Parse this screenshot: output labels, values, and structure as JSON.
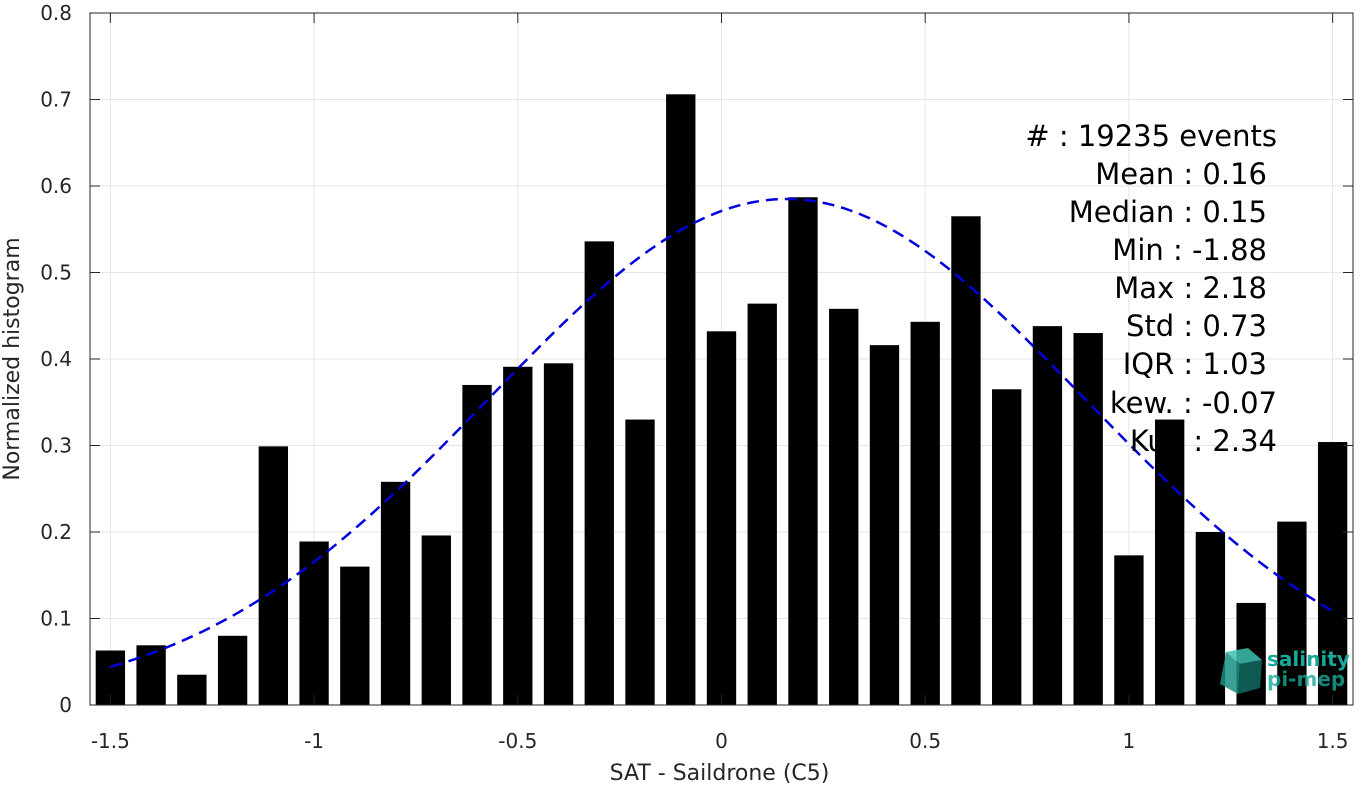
{
  "chart_data": {
    "type": "bar",
    "title": "",
    "xlabel": "SAT - Saildrone (C5)",
    "ylabel": "Normalized histogram",
    "xlim": [
      -1.55,
      1.55
    ],
    "ylim": [
      0,
      0.8
    ],
    "xticks": [
      -1.5,
      -1,
      -0.5,
      0,
      0.5,
      1,
      1.5
    ],
    "xtick_labels": [
      "-1.5",
      "-1",
      "-0.5",
      "0",
      "0.5",
      "1",
      "1.5"
    ],
    "yticks": [
      0,
      0.1,
      0.2,
      0.3,
      0.4,
      0.5,
      0.6,
      0.7,
      0.8
    ],
    "ytick_labels": [
      "0",
      "0.1",
      "0.2",
      "0.3",
      "0.4",
      "0.5",
      "0.6",
      "0.7",
      "0.8"
    ],
    "grid": true,
    "bar_color": "#000000",
    "bars": {
      "x": [
        -1.5,
        -1.4,
        -1.3,
        -1.2,
        -1.1,
        -1.0,
        -0.9,
        -0.8,
        -0.7,
        -0.6,
        -0.5,
        -0.4,
        -0.3,
        -0.2,
        -0.1,
        0.0,
        0.1,
        0.2,
        0.3,
        0.4,
        0.5,
        0.6,
        0.7,
        0.8,
        0.9,
        1.0,
        1.1,
        1.2,
        1.3,
        1.4,
        1.5
      ],
      "values": [
        0.063,
        0.069,
        0.035,
        0.08,
        0.299,
        0.189,
        0.16,
        0.258,
        0.196,
        0.37,
        0.391,
        0.395,
        0.536,
        0.33,
        0.706,
        0.432,
        0.464,
        0.587,
        0.458,
        0.416,
        0.443,
        0.565,
        0.365,
        0.438,
        0.43,
        0.173,
        0.33,
        0.2,
        0.118,
        0.212,
        0.304
      ]
    },
    "fit": {
      "type": "gaussian",
      "color": "#0000dd",
      "style": "dashed",
      "mean": 0.16,
      "std": 0.73,
      "peak": 0.585,
      "x_range": [
        -1.5,
        1.5
      ]
    }
  },
  "stats": {
    "lines": [
      "#  : 19235 events",
      "Mean : 0.16",
      "Median : 0.15",
      "Min : -1.88",
      "Max : 2.18",
      "Std : 0.73",
      "IQR : 1.03",
      "kew. : -0.07",
      "Ku   . : 2.34"
    ]
  },
  "logo": {
    "line1": "salinity",
    "line2": "pi-mep",
    "color": "#1aa89a"
  }
}
